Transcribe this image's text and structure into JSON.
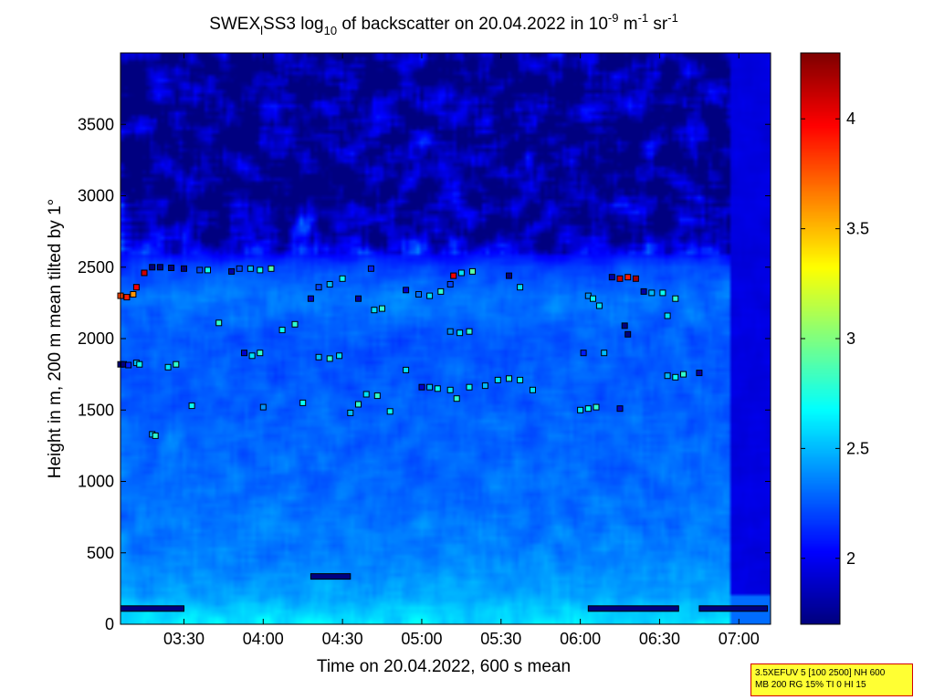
{
  "chart_data": {
    "type": "heatmap",
    "title": {
      "prefix": "SWEX",
      "prefix_sub": "l",
      "middle": "SS3 log",
      "log_sub": "10",
      "suffix": " of backscatter on 20.04.2022 in 10",
      "exp1": "-9",
      "unit1": " m",
      "exp2": "-1",
      "unit2": " sr",
      "exp3": "-1"
    },
    "xlabel": "Time on 20.04.2022, 600 s mean",
    "ylabel": "Height in m, 200 m mean tilted by 1°",
    "x_ticks": [
      "03:30",
      "04:00",
      "04:30",
      "05:00",
      "05:30",
      "06:00",
      "06:30",
      "07:00"
    ],
    "x_tick_values": [
      3.5,
      4.0,
      4.5,
      5.0,
      5.5,
      6.0,
      6.5,
      7.0
    ],
    "xlim": [
      3.1,
      7.2
    ],
    "y_ticks": [
      "0",
      "500",
      "1000",
      "1500",
      "2000",
      "2500",
      "3000",
      "3500"
    ],
    "y_tick_values": [
      0,
      500,
      1000,
      1500,
      2000,
      2500,
      3000,
      3500
    ],
    "ylim": [
      0,
      4000
    ],
    "colorbar": {
      "ticks": [
        "2",
        "2.5",
        "3",
        "3.5",
        "4"
      ],
      "tick_values": [
        2,
        2.5,
        3,
        3.5,
        4
      ],
      "range": [
        1.7,
        4.3
      ],
      "colormap": "jet"
    },
    "grid": false,
    "profile": [
      {
        "h": 0,
        "v": 2.62
      },
      {
        "h": 100,
        "v": 2.55
      },
      {
        "h": 200,
        "v": 2.45
      },
      {
        "h": 500,
        "v": 2.35
      },
      {
        "h": 1000,
        "v": 2.3
      },
      {
        "h": 1500,
        "v": 2.27
      },
      {
        "h": 2000,
        "v": 2.25
      },
      {
        "h": 2300,
        "v": 2.33
      },
      {
        "h": 2500,
        "v": 2.2
      },
      {
        "h": 2700,
        "v": 1.85
      },
      {
        "h": 3000,
        "v": 1.78
      },
      {
        "h": 4000,
        "v": 1.75
      }
    ],
    "layer_points": [
      {
        "t": 3.1,
        "h": 1820,
        "v": 1.7
      },
      {
        "t": 3.12,
        "h": 1820,
        "v": 1.7
      },
      {
        "t": 3.15,
        "h": 1815,
        "v": 2.1
      },
      {
        "t": 3.2,
        "h": 1830,
        "v": 2.5
      },
      {
        "t": 3.22,
        "h": 1820,
        "v": 2.7
      },
      {
        "t": 3.1,
        "h": 2300,
        "v": 3.8
      },
      {
        "t": 3.14,
        "h": 2290,
        "v": 3.9
      },
      {
        "t": 3.18,
        "h": 2310,
        "v": 3.6
      },
      {
        "t": 3.2,
        "h": 2360,
        "v": 4.0
      },
      {
        "t": 3.25,
        "h": 2460,
        "v": 4.1
      },
      {
        "t": 3.3,
        "h": 2500,
        "v": 1.7
      },
      {
        "t": 3.35,
        "h": 2500,
        "v": 1.7
      },
      {
        "t": 3.42,
        "h": 2495,
        "v": 1.7
      },
      {
        "t": 3.5,
        "h": 2490,
        "v": 1.7
      },
      {
        "t": 3.6,
        "h": 2480,
        "v": 2.2
      },
      {
        "t": 3.65,
        "h": 2480,
        "v": 2.7
      },
      {
        "t": 3.4,
        "h": 1800,
        "v": 2.6
      },
      {
        "t": 3.45,
        "h": 1820,
        "v": 2.8
      },
      {
        "t": 3.3,
        "h": 1330,
        "v": 2.5
      },
      {
        "t": 3.32,
        "h": 1320,
        "v": 2.8
      },
      {
        "t": 3.55,
        "h": 1530,
        "v": 2.7
      },
      {
        "t": 3.72,
        "h": 2110,
        "v": 2.8
      },
      {
        "t": 3.8,
        "h": 2470,
        "v": 1.8
      },
      {
        "t": 3.85,
        "h": 2490,
        "v": 2.2
      },
      {
        "t": 3.92,
        "h": 2490,
        "v": 2.5
      },
      {
        "t": 3.98,
        "h": 2480,
        "v": 2.7
      },
      {
        "t": 4.05,
        "h": 2490,
        "v": 2.9
      },
      {
        "t": 3.88,
        "h": 1900,
        "v": 1.9
      },
      {
        "t": 3.93,
        "h": 1880,
        "v": 2.6
      },
      {
        "t": 3.98,
        "h": 1900,
        "v": 2.8
      },
      {
        "t": 4.0,
        "h": 1520,
        "v": 2.4
      },
      {
        "t": 4.12,
        "h": 2060,
        "v": 2.7
      },
      {
        "t": 4.2,
        "h": 2100,
        "v": 2.8
      },
      {
        "t": 4.3,
        "h": 2280,
        "v": 1.9
      },
      {
        "t": 4.35,
        "h": 2360,
        "v": 2.2
      },
      {
        "t": 4.42,
        "h": 2380,
        "v": 2.5
      },
      {
        "t": 4.5,
        "h": 2420,
        "v": 2.7
      },
      {
        "t": 4.6,
        "h": 2280,
        "v": 1.8
      },
      {
        "t": 4.68,
        "h": 2490,
        "v": 2.1
      },
      {
        "t": 4.7,
        "h": 2200,
        "v": 2.6
      },
      {
        "t": 4.75,
        "h": 2210,
        "v": 2.8
      },
      {
        "t": 4.35,
        "h": 1870,
        "v": 2.5
      },
      {
        "t": 4.42,
        "h": 1860,
        "v": 2.8
      },
      {
        "t": 4.48,
        "h": 1880,
        "v": 2.6
      },
      {
        "t": 4.25,
        "h": 1550,
        "v": 2.7
      },
      {
        "t": 4.55,
        "h": 1480,
        "v": 2.5
      },
      {
        "t": 4.6,
        "h": 1540,
        "v": 2.8
      },
      {
        "t": 4.65,
        "h": 1610,
        "v": 2.6
      },
      {
        "t": 4.72,
        "h": 1600,
        "v": 2.8
      },
      {
        "t": 4.8,
        "h": 1490,
        "v": 2.7
      },
      {
        "t": 4.9,
        "h": 1780,
        "v": 2.6
      },
      {
        "t": 4.9,
        "h": 2340,
        "v": 1.9
      },
      {
        "t": 4.98,
        "h": 2310,
        "v": 2.3
      },
      {
        "t": 5.05,
        "h": 2300,
        "v": 2.6
      },
      {
        "t": 5.12,
        "h": 2330,
        "v": 2.8
      },
      {
        "t": 5.18,
        "h": 2380,
        "v": 2.2
      },
      {
        "t": 5.2,
        "h": 2440,
        "v": 4.0
      },
      {
        "t": 5.25,
        "h": 2460,
        "v": 2.6
      },
      {
        "t": 5.32,
        "h": 2470,
        "v": 2.9
      },
      {
        "t": 5.0,
        "h": 1660,
        "v": 1.9
      },
      {
        "t": 5.05,
        "h": 1660,
        "v": 2.5
      },
      {
        "t": 5.1,
        "h": 1650,
        "v": 2.7
      },
      {
        "t": 5.18,
        "h": 1640,
        "v": 2.6
      },
      {
        "t": 5.22,
        "h": 1580,
        "v": 2.8
      },
      {
        "t": 5.3,
        "h": 1660,
        "v": 2.7
      },
      {
        "t": 5.4,
        "h": 1670,
        "v": 2.5
      },
      {
        "t": 5.18,
        "h": 2050,
        "v": 2.4
      },
      {
        "t": 5.24,
        "h": 2040,
        "v": 2.6
      },
      {
        "t": 5.3,
        "h": 2050,
        "v": 2.8
      },
      {
        "t": 5.48,
        "h": 1710,
        "v": 2.6
      },
      {
        "t": 5.55,
        "h": 1720,
        "v": 2.8
      },
      {
        "t": 5.62,
        "h": 1710,
        "v": 2.7
      },
      {
        "t": 5.7,
        "h": 1640,
        "v": 2.6
      },
      {
        "t": 5.55,
        "h": 2440,
        "v": 1.7
      },
      {
        "t": 5.62,
        "h": 2360,
        "v": 2.6
      },
      {
        "t": 6.05,
        "h": 2300,
        "v": 2.4
      },
      {
        "t": 6.08,
        "h": 2280,
        "v": 2.7
      },
      {
        "t": 6.12,
        "h": 2230,
        "v": 2.6
      },
      {
        "t": 6.02,
        "h": 1900,
        "v": 2.1
      },
      {
        "t": 6.15,
        "h": 1900,
        "v": 2.5
      },
      {
        "t": 6.0,
        "h": 1500,
        "v": 2.6
      },
      {
        "t": 6.05,
        "h": 1510,
        "v": 2.7
      },
      {
        "t": 6.1,
        "h": 1520,
        "v": 2.8
      },
      {
        "t": 6.2,
        "h": 2430,
        "v": 1.8
      },
      {
        "t": 6.25,
        "h": 2420,
        "v": 4.1
      },
      {
        "t": 6.3,
        "h": 2430,
        "v": 3.9
      },
      {
        "t": 6.35,
        "h": 2420,
        "v": 4.2
      },
      {
        "t": 6.28,
        "h": 2090,
        "v": 1.7
      },
      {
        "t": 6.3,
        "h": 2030,
        "v": 1.7
      },
      {
        "t": 6.25,
        "h": 1510,
        "v": 1.9
      },
      {
        "t": 6.4,
        "h": 2330,
        "v": 1.8
      },
      {
        "t": 6.45,
        "h": 2320,
        "v": 2.5
      },
      {
        "t": 6.52,
        "h": 2320,
        "v": 2.7
      },
      {
        "t": 6.55,
        "h": 2160,
        "v": 2.6
      },
      {
        "t": 6.6,
        "h": 2280,
        "v": 2.8
      },
      {
        "t": 6.55,
        "h": 1740,
        "v": 2.5
      },
      {
        "t": 6.6,
        "h": 1730,
        "v": 2.7
      },
      {
        "t": 6.65,
        "h": 1750,
        "v": 2.8
      },
      {
        "t": 6.75,
        "h": 1760,
        "v": 1.8
      }
    ],
    "bl_segments": [
      {
        "t0": 3.1,
        "t1": 3.5,
        "h": 110,
        "v": 1.7
      },
      {
        "t0": 4.3,
        "t1": 4.55,
        "h": 335,
        "v": 1.7
      },
      {
        "t0": 6.05,
        "t1": 6.62,
        "h": 110,
        "v": 1.7
      },
      {
        "t0": 6.75,
        "t1": 7.18,
        "h": 110,
        "v": 1.7
      }
    ]
  },
  "info_box": {
    "line1": "3.5XEFUV 5 [100 2500] NH 600",
    "line2": "MB 200 RG 15% TI 0 HI 15"
  }
}
